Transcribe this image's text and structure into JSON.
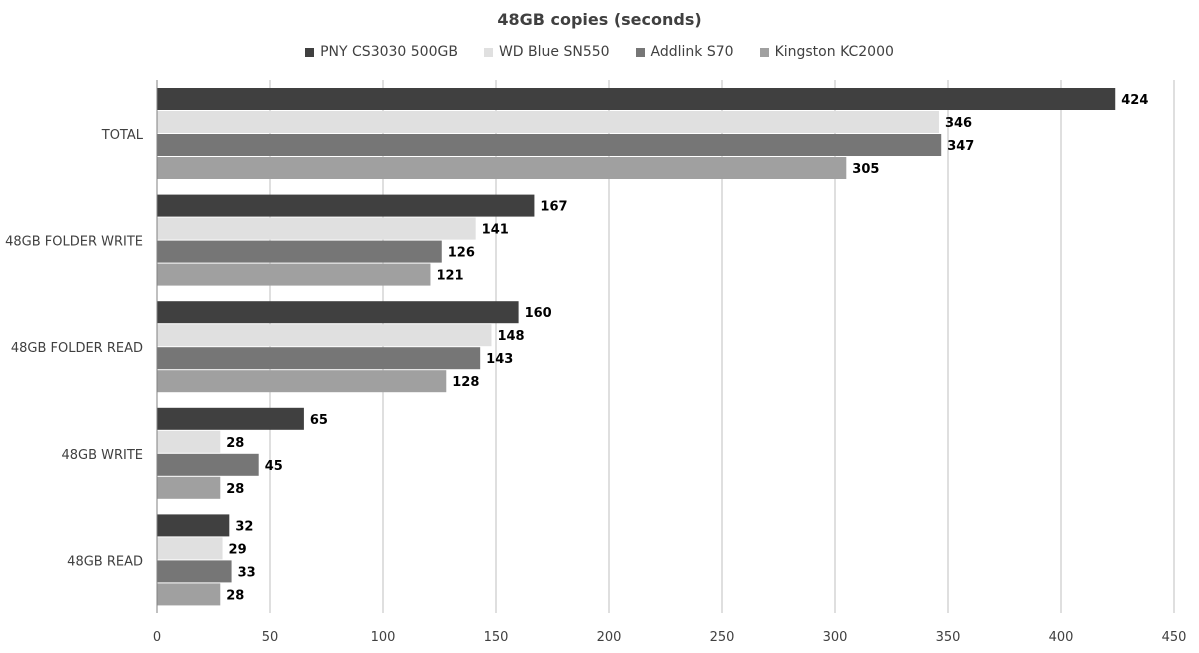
{
  "chart_data": {
    "type": "bar",
    "orientation": "horizontal",
    "title": "48GB copies (seconds)",
    "categories": [
      "TOTAL",
      "48GB FOLDER WRITE",
      "48GB FOLDER READ",
      "48GB WRITE",
      "48GB READ"
    ],
    "series": [
      {
        "name": "PNY CS3030 500GB",
        "color": "#404040",
        "values": [
          424,
          167,
          160,
          65,
          32
        ]
      },
      {
        "name": "WD Blue SN550",
        "color": "#e0e0e0",
        "values": [
          346,
          141,
          148,
          28,
          29
        ]
      },
      {
        "name": "Addlink S70",
        "color": "#767676",
        "values": [
          347,
          126,
          143,
          45,
          33
        ]
      },
      {
        "name": "Kingston KC2000",
        "color": "#a0a0a0",
        "values": [
          305,
          121,
          128,
          28,
          28
        ]
      }
    ],
    "xlim": [
      0,
      450
    ],
    "xticks": [
      0,
      50,
      100,
      150,
      200,
      250,
      300,
      350,
      400,
      450
    ],
    "grid": "vertical",
    "legend_position": "top",
    "data_labels": true
  }
}
